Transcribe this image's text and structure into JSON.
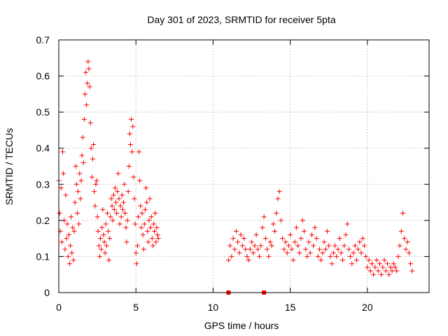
{
  "chart_data": {
    "type": "scatter",
    "title": "Day 301 of 2023, SRMTID for receiver 5pta",
    "xlabel": "GPS time / hours",
    "ylabel": "SRMTID / TECUs",
    "xlim": [
      0,
      24
    ],
    "ylim": [
      0,
      0.7
    ],
    "xticks": [
      0,
      5,
      10,
      15,
      20
    ],
    "yticks": [
      0,
      0.1,
      0.2,
      0.3,
      0.4,
      0.5,
      0.6,
      0.7
    ],
    "x_tick_labels": [
      "0",
      "5",
      "10",
      "15",
      "20"
    ],
    "y_tick_labels": [
      "0",
      "0.1",
      "0.2",
      "0.3",
      "0.4",
      "0.5",
      "0.6",
      "0.7"
    ],
    "grid": true,
    "marker": "+",
    "color": "#ff0000",
    "zero_markers": [
      {
        "x": 11.0,
        "y": 0.0
      },
      {
        "x": 13.3,
        "y": 0.0
      }
    ],
    "series": [
      {
        "name": "SRMTID",
        "points": [
          [
            0.0,
            0.31
          ],
          [
            0.05,
            0.22
          ],
          [
            0.1,
            0.17
          ],
          [
            0.15,
            0.29
          ],
          [
            0.2,
            0.14
          ],
          [
            0.25,
            0.39
          ],
          [
            0.3,
            0.33
          ],
          [
            0.35,
            0.2
          ],
          [
            0.4,
            0.12
          ],
          [
            0.45,
            0.27
          ],
          [
            0.5,
            0.15
          ],
          [
            0.55,
            0.19
          ],
          [
            0.6,
            0.1
          ],
          [
            0.65,
            0.16
          ],
          [
            0.7,
            0.08
          ],
          [
            0.75,
            0.13
          ],
          [
            0.8,
            0.21
          ],
          [
            0.85,
            0.11
          ],
          [
            0.9,
            0.18
          ],
          [
            0.95,
            0.09
          ],
          [
            1.0,
            0.17
          ],
          [
            1.05,
            0.25
          ],
          [
            1.1,
            0.35
          ],
          [
            1.15,
            0.3
          ],
          [
            1.2,
            0.22
          ],
          [
            1.25,
            0.28
          ],
          [
            1.3,
            0.19
          ],
          [
            1.35,
            0.33
          ],
          [
            1.4,
            0.26
          ],
          [
            1.45,
            0.31
          ],
          [
            1.5,
            0.38
          ],
          [
            1.55,
            0.43
          ],
          [
            1.6,
            0.36
          ],
          [
            1.65,
            0.48
          ],
          [
            1.7,
            0.55
          ],
          [
            1.75,
            0.61
          ],
          [
            1.8,
            0.52
          ],
          [
            1.85,
            0.58
          ],
          [
            1.9,
            0.64
          ],
          [
            1.95,
            0.62
          ],
          [
            2.0,
            0.57
          ],
          [
            2.05,
            0.47
          ],
          [
            2.1,
            0.4
          ],
          [
            2.15,
            0.32
          ],
          [
            2.2,
            0.37
          ],
          [
            2.25,
            0.41
          ],
          [
            2.3,
            0.28
          ],
          [
            2.35,
            0.24
          ],
          [
            2.4,
            0.3
          ],
          [
            2.45,
            0.31
          ],
          [
            2.5,
            0.21
          ],
          [
            2.55,
            0.17
          ],
          [
            2.6,
            0.13
          ],
          [
            2.65,
            0.1
          ],
          [
            2.7,
            0.15
          ],
          [
            2.75,
            0.12
          ],
          [
            2.8,
            0.18
          ],
          [
            2.85,
            0.23
          ],
          [
            2.9,
            0.16
          ],
          [
            2.95,
            0.14
          ],
          [
            3.0,
            0.11
          ],
          [
            3.05,
            0.19
          ],
          [
            3.1,
            0.13
          ],
          [
            3.15,
            0.22
          ],
          [
            3.2,
            0.17
          ],
          [
            3.25,
            0.09
          ],
          [
            3.3,
            0.15
          ],
          [
            3.35,
            0.21
          ],
          [
            3.4,
            0.26
          ],
          [
            3.45,
            0.24
          ],
          [
            3.5,
            0.2
          ],
          [
            3.55,
            0.27
          ],
          [
            3.6,
            0.23
          ],
          [
            3.65,
            0.29
          ],
          [
            3.7,
            0.25
          ],
          [
            3.75,
            0.22
          ],
          [
            3.8,
            0.28
          ],
          [
            3.85,
            0.33
          ],
          [
            3.9,
            0.26
          ],
          [
            3.95,
            0.19
          ],
          [
            4.0,
            0.24
          ],
          [
            4.05,
            0.21
          ],
          [
            4.1,
            0.27
          ],
          [
            4.15,
            0.23
          ],
          [
            4.2,
            0.25
          ],
          [
            4.25,
            0.3
          ],
          [
            4.3,
            0.22
          ],
          [
            4.35,
            0.18
          ],
          [
            4.4,
            0.14
          ],
          [
            4.45,
            0.2
          ],
          [
            4.5,
            0.28
          ],
          [
            4.55,
            0.35
          ],
          [
            4.6,
            0.44
          ],
          [
            4.65,
            0.41
          ],
          [
            4.7,
            0.48
          ],
          [
            4.75,
            0.39
          ],
          [
            4.8,
            0.46
          ],
          [
            4.85,
            0.32
          ],
          [
            4.9,
            0.26
          ],
          [
            4.95,
            0.19
          ],
          [
            5.0,
            0.11
          ],
          [
            5.05,
            0.08
          ],
          [
            5.1,
            0.13
          ],
          [
            5.15,
            0.21
          ],
          [
            5.2,
            0.39
          ],
          [
            5.25,
            0.31
          ],
          [
            5.3,
            0.24
          ],
          [
            5.35,
            0.18
          ],
          [
            5.4,
            0.22
          ],
          [
            5.45,
            0.16
          ],
          [
            5.5,
            0.12
          ],
          [
            5.55,
            0.19
          ],
          [
            5.6,
            0.23
          ],
          [
            5.65,
            0.29
          ],
          [
            5.7,
            0.25
          ],
          [
            5.75,
            0.17
          ],
          [
            5.8,
            0.14
          ],
          [
            5.85,
            0.2
          ],
          [
            5.9,
            0.26
          ],
          [
            5.95,
            0.18
          ],
          [
            6.0,
            0.21
          ],
          [
            6.05,
            0.15
          ],
          [
            6.1,
            0.13
          ],
          [
            6.15,
            0.19
          ],
          [
            6.2,
            0.17
          ],
          [
            6.25,
            0.22
          ],
          [
            6.3,
            0.14
          ],
          [
            6.35,
            0.18
          ],
          [
            6.4,
            0.16
          ],
          [
            6.45,
            0.15
          ],
          [
            11.0,
            0.09
          ],
          [
            11.1,
            0.13
          ],
          [
            11.2,
            0.1
          ],
          [
            11.3,
            0.15
          ],
          [
            11.4,
            0.12
          ],
          [
            11.5,
            0.17
          ],
          [
            11.6,
            0.14
          ],
          [
            11.7,
            0.11
          ],
          [
            11.8,
            0.16
          ],
          [
            11.9,
            0.13
          ],
          [
            12.0,
            0.15
          ],
          [
            12.1,
            0.12
          ],
          [
            12.2,
            0.1
          ],
          [
            12.3,
            0.09
          ],
          [
            12.4,
            0.12
          ],
          [
            12.5,
            0.14
          ],
          [
            12.6,
            0.11
          ],
          [
            12.7,
            0.13
          ],
          [
            12.8,
            0.16
          ],
          [
            12.9,
            0.12
          ],
          [
            13.0,
            0.1
          ],
          [
            13.1,
            0.13
          ],
          [
            13.2,
            0.18
          ],
          [
            13.3,
            0.21
          ],
          [
            13.4,
            0.15
          ],
          [
            13.5,
            0.12
          ],
          [
            13.6,
            0.1
          ],
          [
            13.7,
            0.14
          ],
          [
            13.8,
            0.13
          ],
          [
            13.9,
            0.19
          ],
          [
            14.0,
            0.17
          ],
          [
            14.1,
            0.22
          ],
          [
            14.2,
            0.26
          ],
          [
            14.3,
            0.28
          ],
          [
            14.4,
            0.2
          ],
          [
            14.5,
            0.15
          ],
          [
            14.6,
            0.12
          ],
          [
            14.7,
            0.14
          ],
          [
            14.8,
            0.11
          ],
          [
            14.9,
            0.13
          ],
          [
            15.0,
            0.16
          ],
          [
            15.1,
            0.12
          ],
          [
            15.2,
            0.09
          ],
          [
            15.3,
            0.14
          ],
          [
            15.4,
            0.18
          ],
          [
            15.5,
            0.13
          ],
          [
            15.6,
            0.11
          ],
          [
            15.7,
            0.15
          ],
          [
            15.8,
            0.2
          ],
          [
            15.9,
            0.17
          ],
          [
            16.0,
            0.12
          ],
          [
            16.1,
            0.1
          ],
          [
            16.2,
            0.14
          ],
          [
            16.3,
            0.11
          ],
          [
            16.4,
            0.16
          ],
          [
            16.5,
            0.13
          ],
          [
            16.6,
            0.18
          ],
          [
            16.7,
            0.15
          ],
          [
            16.8,
            0.1
          ],
          [
            16.9,
            0.12
          ],
          [
            17.0,
            0.09
          ],
          [
            17.1,
            0.11
          ],
          [
            17.2,
            0.14
          ],
          [
            17.3,
            0.12
          ],
          [
            17.4,
            0.17
          ],
          [
            17.5,
            0.13
          ],
          [
            17.6,
            0.1
          ],
          [
            17.7,
            0.08
          ],
          [
            17.8,
            0.11
          ],
          [
            17.9,
            0.13
          ],
          [
            18.0,
            0.1
          ],
          [
            18.1,
            0.12
          ],
          [
            18.2,
            0.15
          ],
          [
            18.3,
            0.11
          ],
          [
            18.4,
            0.09
          ],
          [
            18.5,
            0.13
          ],
          [
            18.6,
            0.16
          ],
          [
            18.7,
            0.19
          ],
          [
            18.8,
            0.12
          ],
          [
            18.9,
            0.1
          ],
          [
            19.0,
            0.08
          ],
          [
            19.1,
            0.11
          ],
          [
            19.2,
            0.13
          ],
          [
            19.3,
            0.09
          ],
          [
            19.4,
            0.12
          ],
          [
            19.5,
            0.14
          ],
          [
            19.6,
            0.11
          ],
          [
            19.7,
            0.15
          ],
          [
            19.8,
            0.13
          ],
          [
            19.9,
            0.1
          ],
          [
            20.0,
            0.07
          ],
          [
            20.1,
            0.09
          ],
          [
            20.2,
            0.06
          ],
          [
            20.3,
            0.08
          ],
          [
            20.4,
            0.05
          ],
          [
            20.5,
            0.07
          ],
          [
            20.6,
            0.09
          ],
          [
            20.7,
            0.06
          ],
          [
            20.8,
            0.08
          ],
          [
            20.9,
            0.05
          ],
          [
            21.0,
            0.07
          ],
          [
            21.1,
            0.09
          ],
          [
            21.2,
            0.06
          ],
          [
            21.3,
            0.08
          ],
          [
            21.4,
            0.05
          ],
          [
            21.5,
            0.07
          ],
          [
            21.6,
            0.06
          ],
          [
            21.7,
            0.08
          ],
          [
            21.8,
            0.07
          ],
          [
            21.9,
            0.06
          ],
          [
            22.0,
            0.1
          ],
          [
            22.1,
            0.13
          ],
          [
            22.2,
            0.17
          ],
          [
            22.3,
            0.22
          ],
          [
            22.4,
            0.15
          ],
          [
            22.5,
            0.12
          ],
          [
            22.6,
            0.14
          ],
          [
            22.7,
            0.11
          ],
          [
            22.8,
            0.08
          ],
          [
            22.9,
            0.06
          ]
        ]
      }
    ]
  }
}
